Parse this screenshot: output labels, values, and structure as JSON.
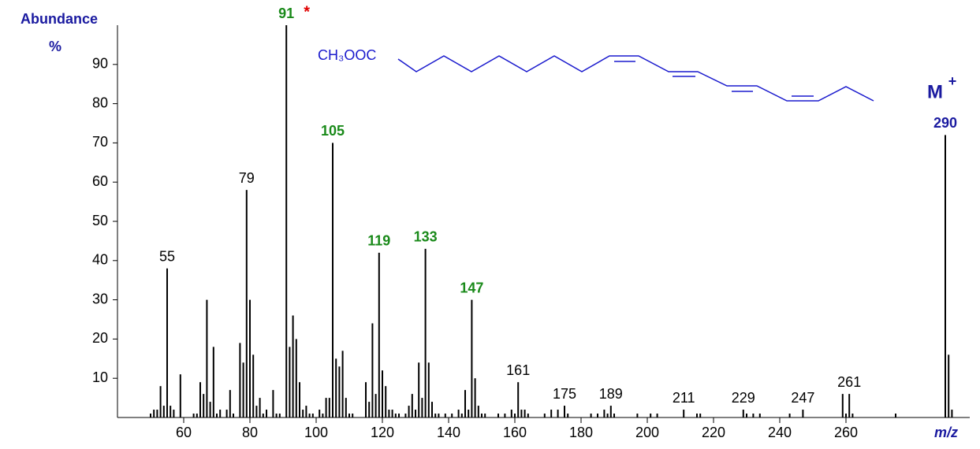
{
  "chart_data": {
    "type": "spectrum",
    "y_label": "Abundance",
    "y_unit": "%",
    "x_label": "m/z",
    "structure_label": "CH₃OOC",
    "molecular_ion": "M",
    "molecular_ion_charge": "+",
    "base_peak_marker": "*",
    "color": "#000000",
    "xlim": [
      40,
      295
    ],
    "ylim": [
      0,
      100
    ],
    "xticks": [
      60,
      80,
      100,
      120,
      140,
      160,
      180,
      200,
      220,
      240,
      260
    ],
    "yticks": [
      10,
      20,
      30,
      40,
      50,
      60,
      70,
      80,
      90
    ],
    "x": [
      50,
      51,
      52,
      53,
      54,
      55,
      56,
      57,
      59,
      63,
      64,
      65,
      66,
      67,
      68,
      69,
      70,
      71,
      73,
      74,
      75,
      77,
      78,
      79,
      80,
      81,
      82,
      83,
      84,
      85,
      87,
      88,
      89,
      91,
      92,
      93,
      94,
      95,
      96,
      97,
      98,
      99,
      101,
      102,
      103,
      104,
      105,
      106,
      107,
      108,
      109,
      110,
      111,
      115,
      116,
      117,
      118,
      119,
      120,
      121,
      122,
      123,
      124,
      125,
      127,
      128,
      129,
      130,
      131,
      132,
      133,
      134,
      135,
      136,
      137,
      139,
      141,
      143,
      144,
      145,
      146,
      147,
      148,
      149,
      150,
      151,
      155,
      157,
      159,
      160,
      161,
      162,
      163,
      164,
      169,
      171,
      173,
      175,
      176,
      183,
      185,
      187,
      188,
      189,
      190,
      197,
      201,
      203,
      211,
      215,
      216,
      229,
      230,
      232,
      234,
      243,
      247,
      259,
      260,
      261,
      262,
      275,
      290,
      291,
      292
    ],
    "values": [
      1,
      2,
      2,
      8,
      3,
      38,
      3,
      2,
      11,
      1,
      1,
      9,
      6,
      30,
      4,
      18,
      1,
      2,
      2,
      7,
      1,
      19,
      14,
      58,
      30,
      16,
      3,
      5,
      1,
      2,
      7,
      1,
      1,
      100,
      18,
      26,
      20,
      9,
      2,
      3,
      1,
      1,
      2,
      1,
      5,
      5,
      70,
      15,
      13,
      17,
      5,
      1,
      1,
      9,
      4,
      24,
      6,
      42,
      12,
      8,
      2,
      2,
      1,
      1,
      1,
      3,
      6,
      2,
      14,
      5,
      43,
      14,
      4,
      1,
      1,
      1,
      1,
      2,
      1,
      7,
      2,
      30,
      10,
      3,
      1,
      1,
      1,
      1,
      2,
      1,
      9,
      2,
      2,
      1,
      1,
      2,
      2,
      3,
      1,
      1,
      1,
      2,
      1,
      3,
      1,
      1,
      1,
      1,
      2,
      1,
      1,
      2,
      1,
      1,
      1,
      1,
      2,
      6,
      1,
      6,
      1,
      1,
      72,
      16,
      2
    ],
    "peak_labels": [
      {
        "mz": 55,
        "color": "#000000"
      },
      {
        "mz": 79,
        "color": "#000000"
      },
      {
        "mz": 91,
        "color": "#1a8a1a"
      },
      {
        "mz": 105,
        "color": "#1a8a1a"
      },
      {
        "mz": 119,
        "color": "#1a8a1a"
      },
      {
        "mz": 133,
        "color": "#1a8a1a"
      },
      {
        "mz": 147,
        "color": "#1a8a1a"
      },
      {
        "mz": 161,
        "color": "#000000"
      },
      {
        "mz": 175,
        "color": "#000000"
      },
      {
        "mz": 189,
        "color": "#000000"
      },
      {
        "mz": 211,
        "color": "#000000"
      },
      {
        "mz": 229,
        "color": "#000000"
      },
      {
        "mz": 247,
        "color": "#000000"
      },
      {
        "mz": 261,
        "color": "#000000"
      },
      {
        "mz": 290,
        "color": "#1a1aa0"
      }
    ]
  }
}
